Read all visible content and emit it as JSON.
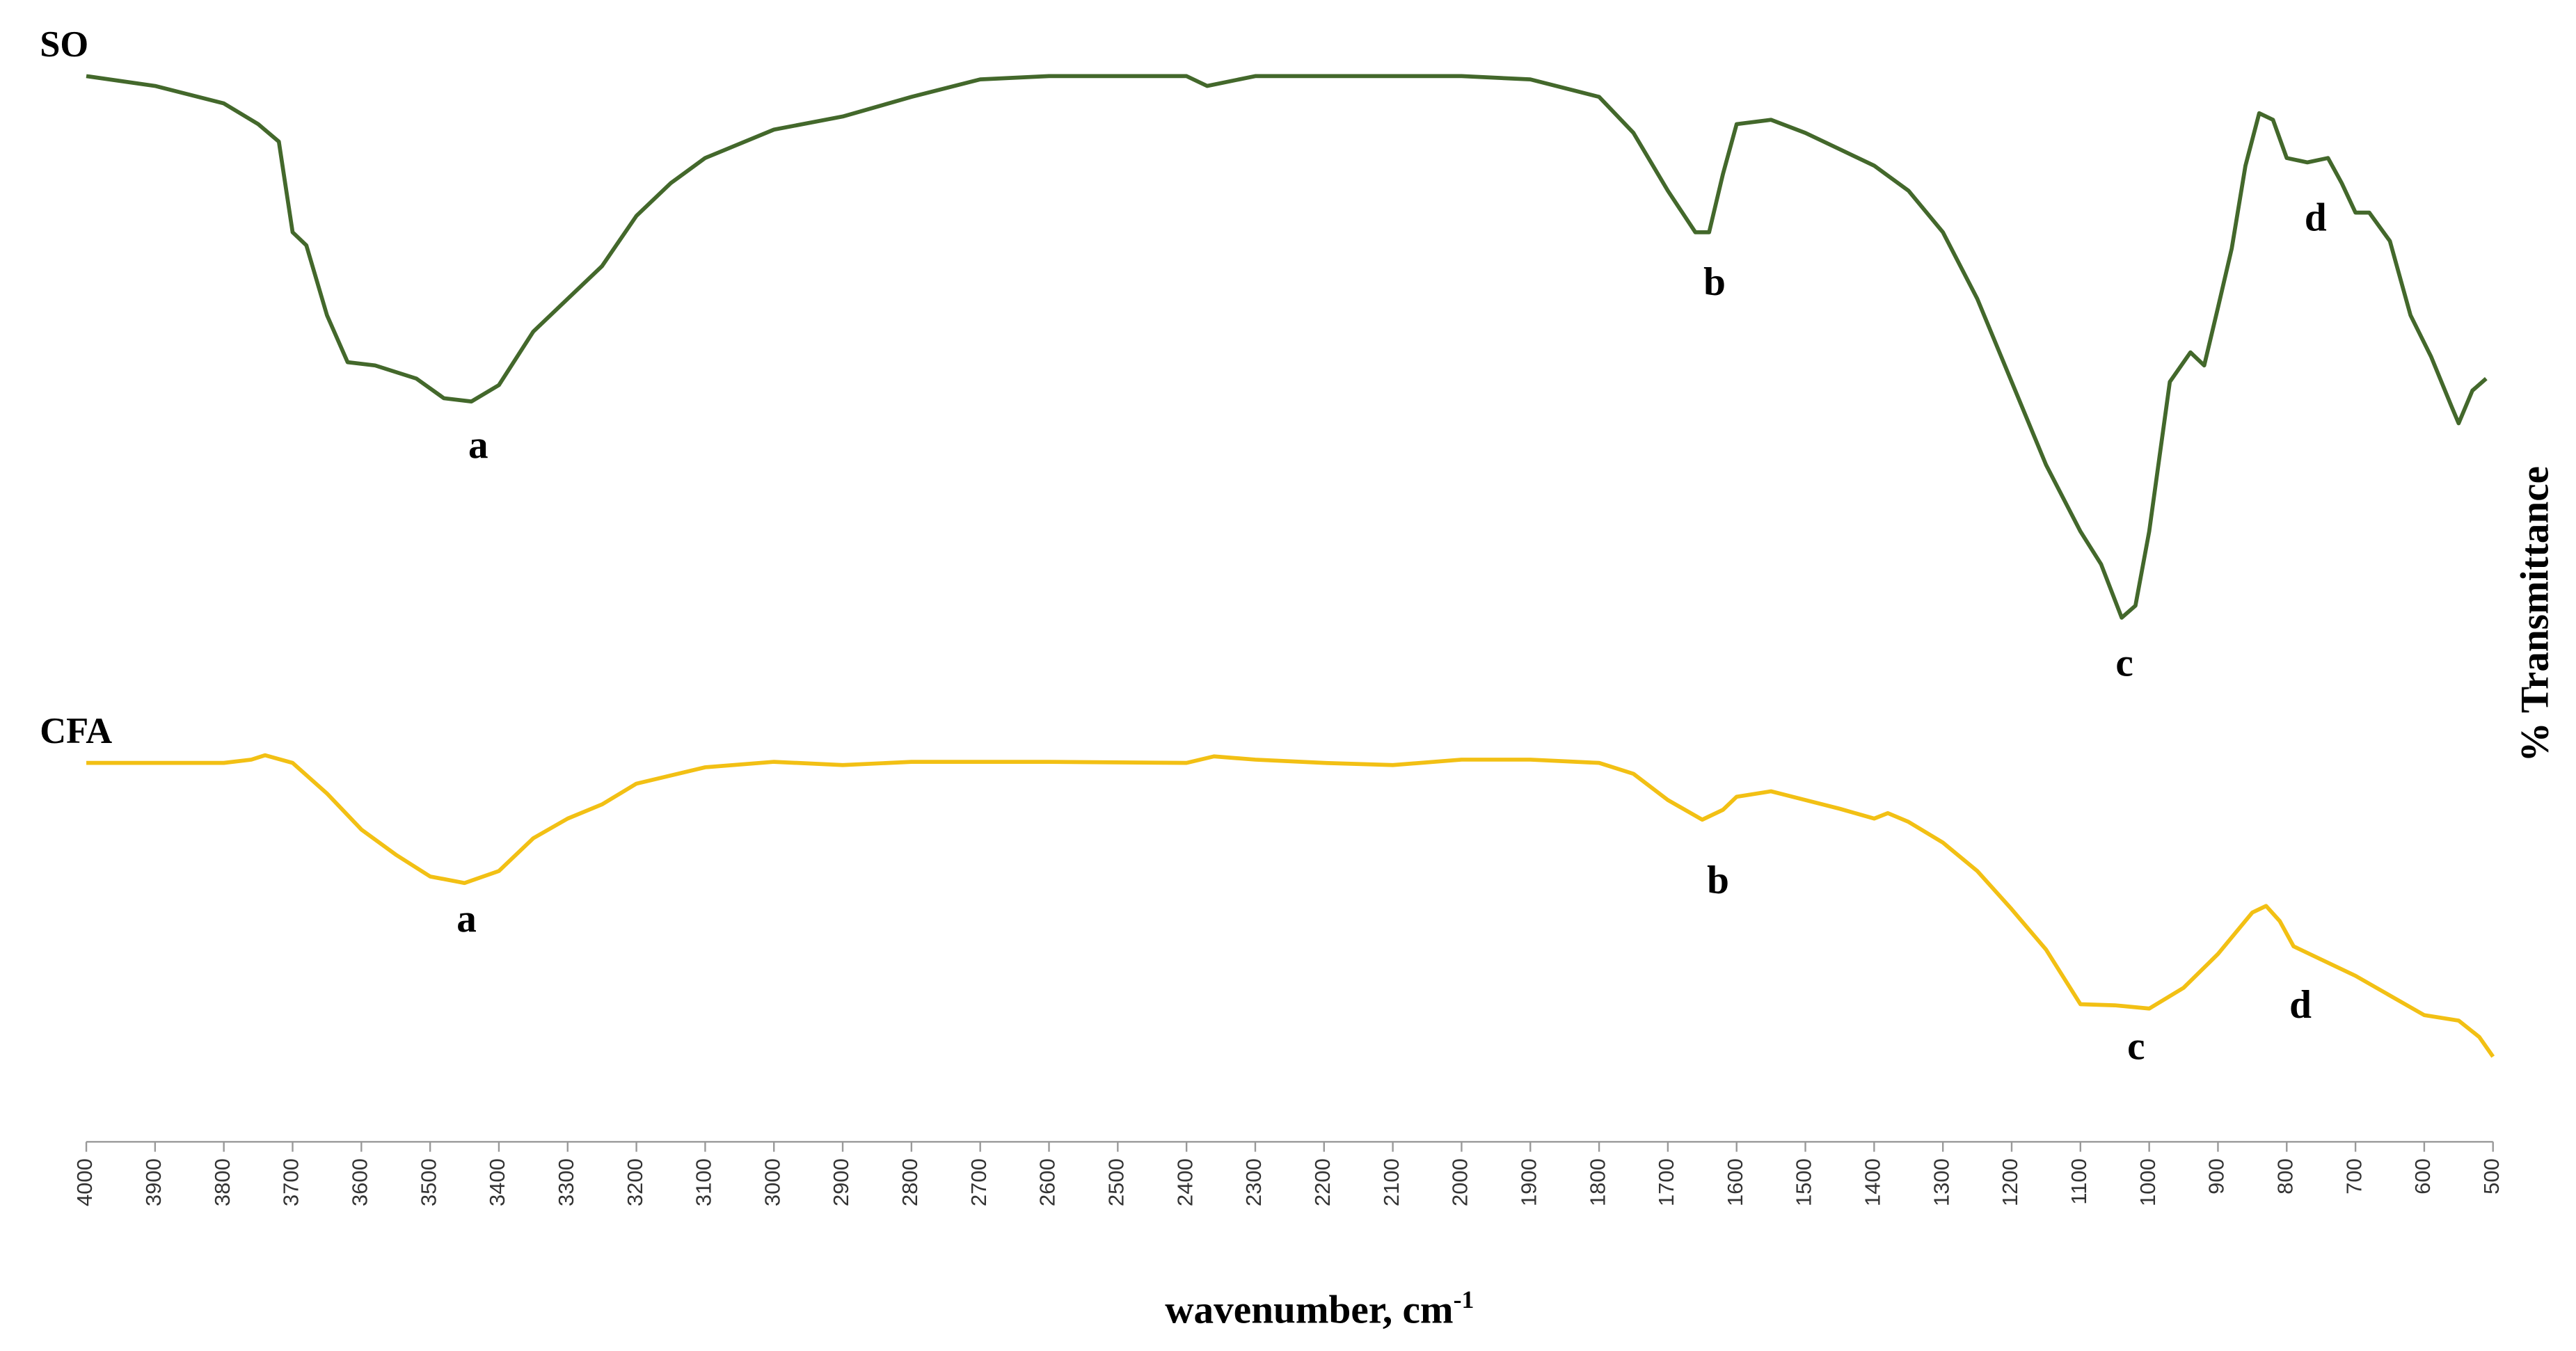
{
  "chart_data": {
    "type": "line",
    "x_label": "wavenumber, cm",
    "x_label_superscript": "-1",
    "y_label": "% Transmittance",
    "xlim": [
      4000,
      500
    ],
    "ylim": [
      0,
      100
    ],
    "xticks": [
      4000,
      3900,
      3800,
      3700,
      3600,
      3500,
      3400,
      3300,
      3200,
      3100,
      3000,
      2900,
      2800,
      2700,
      2600,
      2500,
      2400,
      2300,
      2200,
      2100,
      2000,
      1900,
      1800,
      1700,
      1600,
      1500,
      1400,
      1300,
      1200,
      1100,
      1000,
      900,
      800,
      700,
      600,
      500
    ],
    "series": [
      {
        "name": "SO",
        "color": "#43682b",
        "x": [
          4000,
          3900,
          3800,
          3750,
          3720,
          3700,
          3680,
          3650,
          3620,
          3580,
          3520,
          3480,
          3440,
          3400,
          3350,
          3300,
          3250,
          3200,
          3150,
          3100,
          3000,
          2900,
          2800,
          2700,
          2600,
          2400,
          2370,
          2300,
          2200,
          2000,
          1900,
          1800,
          1750,
          1700,
          1660,
          1640,
          1620,
          1600,
          1550,
          1500,
          1450,
          1400,
          1350,
          1300,
          1250,
          1200,
          1150,
          1100,
          1070,
          1040,
          1020,
          1000,
          970,
          940,
          920,
          900,
          880,
          860,
          840,
          820,
          800,
          770,
          740,
          720,
          700,
          680,
          650,
          620,
          590,
          560,
          550,
          530,
          510
        ],
        "values": [
          97.6,
          96.7,
          95.1,
          93.2,
          91.6,
          83.3,
          82.1,
          75.7,
          71.4,
          71.1,
          69.9,
          68.1,
          67.8,
          69.3,
          74.2,
          77.2,
          80.2,
          84.8,
          87.8,
          90.1,
          92.7,
          93.9,
          95.7,
          97.3,
          97.6,
          97.6,
          96.7,
          97.6,
          97.6,
          97.6,
          97.3,
          95.7,
          92.4,
          87.1,
          83.3,
          83.3,
          88.6,
          93.2,
          93.6,
          92.4,
          90.9,
          89.4,
          87.1,
          83.3,
          77.2,
          69.6,
          62.0,
          55.9,
          52.9,
          48.0,
          49.1,
          55.9,
          69.6,
          72.3,
          71.1,
          76.4,
          81.8,
          89.4,
          94.2,
          93.6,
          90.1,
          89.7,
          90.1,
          87.8,
          85.1,
          85.1,
          82.5,
          75.7,
          71.9,
          67.3,
          65.8,
          68.8,
          69.9
        ]
      },
      {
        "name": "CFA",
        "color": "#f2c014",
        "x": [
          4000,
          3800,
          3760,
          3740,
          3700,
          3650,
          3600,
          3550,
          3500,
          3450,
          3400,
          3350,
          3300,
          3250,
          3200,
          3100,
          3000,
          2900,
          2800,
          2600,
          2400,
          2360,
          2300,
          2200,
          2100,
          2000,
          1900,
          1800,
          1750,
          1700,
          1650,
          1620,
          1600,
          1550,
          1500,
          1450,
          1400,
          1380,
          1350,
          1300,
          1250,
          1200,
          1150,
          1100,
          1050,
          1000,
          950,
          900,
          850,
          830,
          810,
          790,
          750,
          700,
          650,
          600,
          550,
          520,
          500
        ],
        "values": [
          34.7,
          34.7,
          35.0,
          35.4,
          34.7,
          31.9,
          28.6,
          26.3,
          24.3,
          23.7,
          24.8,
          27.8,
          29.6,
          30.9,
          32.8,
          34.3,
          34.8,
          34.5,
          34.8,
          34.8,
          34.7,
          35.3,
          35.0,
          34.7,
          34.5,
          35.0,
          35.0,
          34.7,
          33.7,
          31.3,
          29.5,
          30.4,
          31.6,
          32.1,
          31.3,
          30.5,
          29.6,
          30.1,
          29.3,
          27.4,
          24.8,
          21.3,
          17.6,
          12.6,
          12.5,
          12.2,
          14.1,
          17.2,
          21.0,
          21.6,
          20.2,
          17.9,
          16.7,
          15.2,
          13.4,
          11.6,
          11.1,
          9.6,
          7.8
        ]
      }
    ],
    "annotations": [
      {
        "text": "a",
        "x": 3430,
        "y": 63.5
      },
      {
        "text": "b",
        "x": 1632,
        "y": 78.4
      },
      {
        "text": "c",
        "x": 1036,
        "y": 43.5
      },
      {
        "text": "d",
        "x": 758,
        "y": 84.3
      },
      {
        "text": "a",
        "x": 3447,
        "y": 20.1
      },
      {
        "text": "b",
        "x": 1627,
        "y": 23.6
      },
      {
        "text": "c",
        "x": 1019,
        "y": 8.4
      },
      {
        "text": "d",
        "x": 780,
        "y": 12.2
      }
    ]
  }
}
